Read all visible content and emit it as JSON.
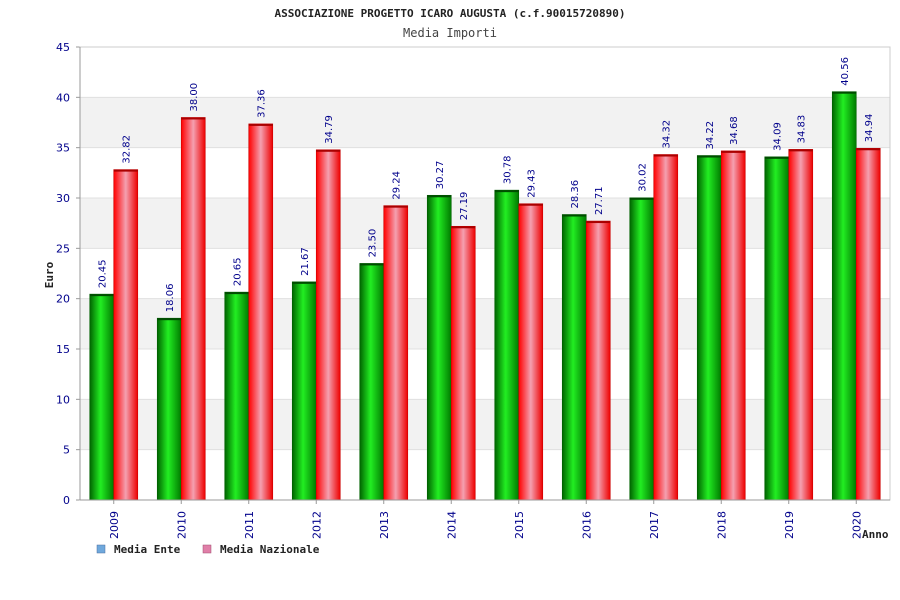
{
  "chart_data": {
    "type": "bar",
    "title": "ASSOCIAZIONE PROGETTO ICARO AUGUSTA (c.f.90015720890)",
    "subtitle": "Media Importi",
    "xlabel": "Anno",
    "ylabel": "Euro",
    "ylim": [
      0,
      45
    ],
    "yticks": [
      0,
      5,
      10,
      15,
      20,
      25,
      30,
      35,
      40,
      45
    ],
    "grid": true,
    "legend_position": "bottom-left",
    "categories": [
      "2009",
      "2010",
      "2011",
      "2012",
      "2013",
      "2014",
      "2015",
      "2016",
      "2017",
      "2018",
      "2019",
      "2020"
    ],
    "series": [
      {
        "name": "Media Ente",
        "color": "#00b000",
        "legend_color": "#6fa8dc",
        "values": [
          20.45,
          18.06,
          20.65,
          21.67,
          23.5,
          30.27,
          30.78,
          28.36,
          30.02,
          34.22,
          34.09,
          40.56
        ],
        "labels": [
          "20.45",
          "18.06",
          "20.65",
          "21.67",
          "23.50",
          "30.27",
          "30.78",
          "28.36",
          "30.02",
          "34.22",
          "34.09",
          "40.56"
        ]
      },
      {
        "name": "Media Nazionale",
        "color": "#ee1122",
        "legend_color": "#e07fa8",
        "values": [
          32.82,
          38.0,
          37.36,
          34.79,
          29.24,
          27.19,
          29.43,
          27.71,
          34.32,
          34.68,
          34.83,
          34.94
        ],
        "labels": [
          "32.82",
          "38.00",
          "37.36",
          "34.79",
          "29.24",
          "27.19",
          "29.43",
          "27.71",
          "34.32",
          "34.68",
          "34.83",
          "34.94"
        ]
      }
    ]
  }
}
